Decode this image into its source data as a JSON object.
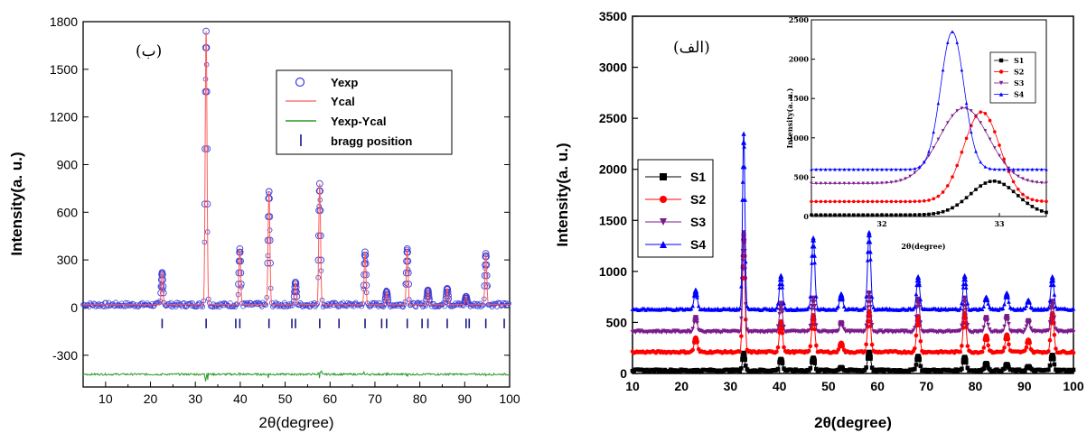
{
  "chart_data": [
    {
      "type": "line",
      "panel_label": "(ب)",
      "xlabel": "2θ(degree)",
      "ylabel": "Intensity(a. u.)",
      "xlim": [
        5,
        100
      ],
      "ylim": [
        -500,
        1800
      ],
      "xticks": [
        10,
        20,
        30,
        40,
        50,
        60,
        70,
        80,
        90,
        100
      ],
      "yticks": [
        -300,
        0,
        300,
        600,
        900,
        1200,
        1500,
        1800
      ],
      "legend_position": "top-right",
      "legend": [
        "Yexp",
        "Ycal",
        "Yexp-Ycal",
        "bragg position"
      ],
      "peaks": [
        {
          "x": 22.6,
          "y": 220
        },
        {
          "x": 32.4,
          "y": 1740
        },
        {
          "x": 39.9,
          "y": 370
        },
        {
          "x": 46.4,
          "y": 730
        },
        {
          "x": 52.3,
          "y": 160
        },
        {
          "x": 57.7,
          "y": 780
        },
        {
          "x": 67.8,
          "y": 350
        },
        {
          "x": 72.6,
          "y": 100
        },
        {
          "x": 77.2,
          "y": 370
        },
        {
          "x": 81.8,
          "y": 110
        },
        {
          "x": 86.1,
          "y": 120
        },
        {
          "x": 90.3,
          "y": 70
        },
        {
          "x": 94.7,
          "y": 340
        }
      ],
      "bragg_positions": [
        22.6,
        32.4,
        39.0,
        39.9,
        46.4,
        51.5,
        52.3,
        57.7,
        62.0,
        67.8,
        71.5,
        72.6,
        77.2,
        80.5,
        81.8,
        86.1,
        90.3,
        91.0,
        94.7,
        98.8
      ],
      "difference_offset": -420,
      "colors": {
        "Yexp": "#3b3bd6",
        "Ycal": "#ff5a5a",
        "Yexp-Ycal": "#2a9a2a",
        "bragg": "#1a1a8a"
      }
    },
    {
      "type": "line",
      "panel_label": "(الف)",
      "xlabel": "2θ(degree)",
      "ylabel": "Intensity(a. u.)",
      "xlim": [
        10,
        100
      ],
      "ylim": [
        0,
        3500
      ],
      "xticks": [
        10,
        20,
        30,
        40,
        50,
        60,
        70,
        80,
        90,
        100
      ],
      "yticks": [
        0,
        500,
        1000,
        1500,
        2000,
        2500,
        3000,
        3500
      ],
      "legend_position": "middle-left",
      "series": [
        {
          "name": "S1",
          "color": "#000000",
          "marker": "square",
          "baseline": 30,
          "peak_heights": [
            0.0,
            170,
            110,
            120,
            30,
            180,
            140,
            130,
            70,
            60,
            40,
            150
          ]
        },
        {
          "name": "S2",
          "color": "#ff0000",
          "marker": "circle",
          "baseline": 210,
          "peak_heights": [
            140,
            1160,
            300,
            360,
            90,
            400,
            350,
            380,
            160,
            170,
            120,
            380
          ]
        },
        {
          "name": "S3",
          "color": "#7a1a8a",
          "marker": "triangle-down",
          "baseline": 410,
          "peak_heights": [
            140,
            970,
            280,
            330,
            90,
            380,
            320,
            330,
            140,
            150,
            110,
            300
          ]
        },
        {
          "name": "S4",
          "color": "#0000ff",
          "marker": "triangle-up",
          "baseline": 630,
          "peak_heights": [
            190,
            1720,
            330,
            700,
            150,
            750,
            320,
            330,
            120,
            160,
            90,
            320
          ]
        }
      ],
      "peak_x": [
        22.9,
        32.7,
        40.3,
        46.9,
        52.6,
        58.3,
        68.3,
        77.8,
        82.2,
        86.4,
        90.8,
        95.7
      ],
      "inset": {
        "xlabel": "2θ(degree)",
        "ylabel": "Intensity(a. u.)",
        "xlim": [
          31.4,
          33.4
        ],
        "ylim": [
          0,
          2500
        ],
        "xticks": [
          32,
          33
        ],
        "yticks": [
          0,
          500,
          1000,
          1500,
          2000,
          2500
        ],
        "legend": [
          "S1",
          "S2",
          "S3",
          "S4"
        ],
        "series": [
          {
            "name": "S1",
            "baseline": 20,
            "center": 32.95,
            "peak": 450,
            "width": 0.28
          },
          {
            "name": "S2",
            "baseline": 190,
            "center": 32.85,
            "peak": 1330,
            "width": 0.22
          },
          {
            "name": "S3",
            "baseline": 420,
            "center": 32.7,
            "peak": 1380,
            "width": 0.3
          },
          {
            "name": "S4",
            "baseline": 600,
            "center": 32.6,
            "peak": 2350,
            "width": 0.14
          }
        ]
      }
    }
  ]
}
